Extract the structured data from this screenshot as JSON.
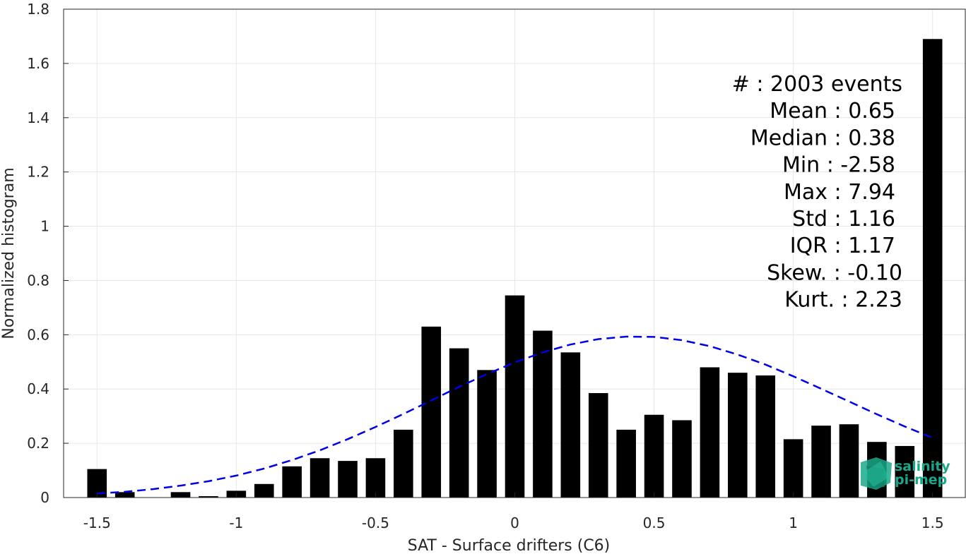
{
  "chart_data": {
    "type": "bar",
    "xlabel": "SAT - Surface drifters (C6)",
    "ylabel": "Normalized histogram",
    "xlim": [
      -1.62,
      1.62
    ],
    "ylim": [
      0,
      1.8
    ],
    "xticks": [
      -1.5,
      -1,
      -0.5,
      0,
      0.5,
      1,
      1.5
    ],
    "xtick_labels": [
      "-1.5",
      "-1",
      "-0.5",
      "0",
      "0.5",
      "1",
      "1.5"
    ],
    "yticks": [
      0,
      0.2,
      0.4,
      0.6,
      0.8,
      1,
      1.2,
      1.4,
      1.6,
      1.8
    ],
    "ytick_labels": [
      "0",
      "0.2",
      "0.4",
      "0.6",
      "0.8",
      "1",
      "1.2",
      "1.4",
      "1.6",
      "1.8"
    ],
    "grid": true,
    "bar_width": 0.07,
    "bars": {
      "x": [
        -1.5,
        -1.4,
        -1.3,
        -1.2,
        -1.1,
        -1.0,
        -0.9,
        -0.8,
        -0.7,
        -0.6,
        -0.5,
        -0.4,
        -0.3,
        -0.2,
        -0.1,
        0.0,
        0.1,
        0.2,
        0.3,
        0.4,
        0.5,
        0.6,
        0.7,
        0.8,
        0.9,
        1.0,
        1.1,
        1.2,
        1.3,
        1.4,
        1.5
      ],
      "values": [
        0.105,
        0.02,
        0.0,
        0.02,
        0.005,
        0.025,
        0.05,
        0.115,
        0.145,
        0.135,
        0.145,
        0.25,
        0.63,
        0.55,
        0.47,
        0.745,
        0.615,
        0.535,
        0.385,
        0.25,
        0.305,
        0.285,
        0.48,
        0.46,
        0.45,
        0.215,
        0.265,
        0.27,
        0.205,
        0.19,
        1.69
      ],
      "color": "#000000"
    },
    "fit_curve": {
      "style": "dashed",
      "color": "#0000e6",
      "x": [
        -1.5,
        -1.4,
        -1.3,
        -1.2,
        -1.1,
        -1.0,
        -0.9,
        -0.8,
        -0.7,
        -0.6,
        -0.5,
        -0.4,
        -0.3,
        -0.2,
        -0.1,
        0.0,
        0.1,
        0.2,
        0.3,
        0.4,
        0.5,
        0.6,
        0.7,
        0.8,
        0.9,
        1.0,
        1.1,
        1.2,
        1.3,
        1.4,
        1.5
      ],
      "y": [
        0.015,
        0.021,
        0.031,
        0.044,
        0.06,
        0.081,
        0.107,
        0.138,
        0.174,
        0.215,
        0.26,
        0.308,
        0.358,
        0.408,
        0.455,
        0.498,
        0.535,
        0.564,
        0.584,
        0.593,
        0.592,
        0.58,
        0.558,
        0.527,
        0.49,
        0.447,
        0.401,
        0.354,
        0.307,
        0.262,
        0.22
      ]
    },
    "annotations": [
      "#  : 2003 events",
      "Mean : 0.65",
      "Median : 0.38",
      "Min : -2.58",
      "Max : 7.94",
      "Std : 1.16",
      "IQR : 1.17",
      "Skew. : -0.10",
      "Kurt. : 2.23"
    ]
  },
  "logo": {
    "line1": "salinity",
    "line2": "pi-mep",
    "color": "#1aa88a"
  }
}
